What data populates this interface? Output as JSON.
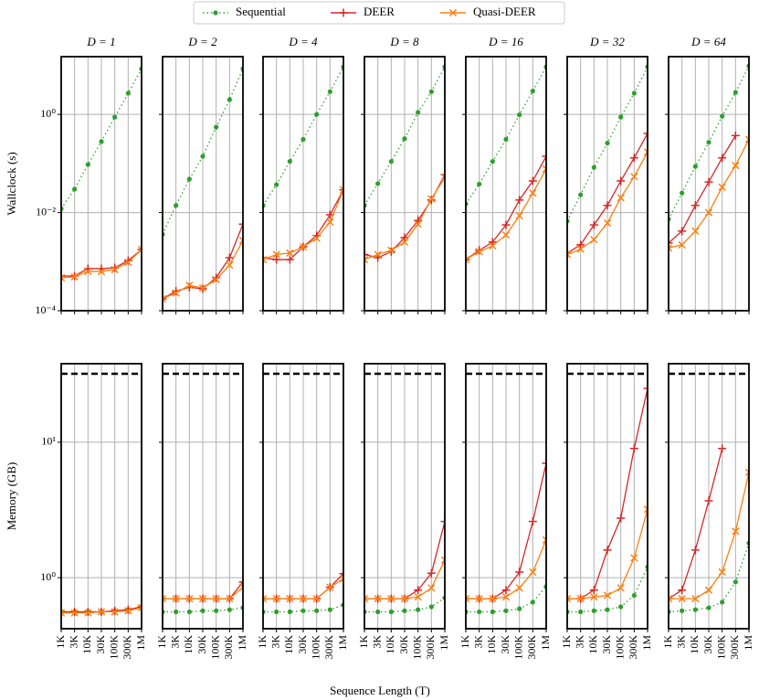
{
  "figure_xlabel": "Sequence Length (T)",
  "chart_data": [
    {
      "type": "line",
      "title": "D = 1",
      "ylabel": "Wallclock (s)",
      "log": true,
      "grid": true,
      "legend": "upper center",
      "categories": [
        null,
        null,
        null,
        null,
        null,
        null,
        null
      ],
      "ylim": [
        0.0001,
        15
      ],
      "yticks": [
        {
          "value": 0.0001,
          "label": "10⁻⁴"
        },
        {
          "value": 0.01,
          "label": "10⁻²"
        },
        {
          "value": 1,
          "label": "10⁰"
        }
      ],
      "series": [
        {
          "name": "Sequential",
          "color": "#2ca02c",
          "values": [
            0.012,
            0.03,
            0.095,
            0.28,
            0.88,
            2.7,
            8.5
          ]
        },
        {
          "name": "DEER",
          "color": "#d62728",
          "values": [
            0.00051,
            0.00051,
            0.00072,
            0.00072,
            0.00075,
            0.00105,
            0.00177
          ]
        },
        {
          "name": "Quasi-DEER",
          "color": "#ff7f0e",
          "values": [
            0.00047,
            0.00049,
            0.00063,
            0.00063,
            0.00069,
            0.00097,
            0.00177
          ]
        }
      ]
    },
    {
      "type": "line",
      "title": "D = 2",
      "log": true,
      "grid": true,
      "categories": [
        null,
        null,
        null,
        null,
        null,
        null,
        null
      ],
      "ylim": [
        0.0001,
        15
      ],
      "yticks": [
        0.0001,
        0.01,
        1
      ],
      "series": [
        {
          "name": "Sequential",
          "color": "#2ca02c",
          "values": [
            0.0036,
            0.014,
            0.048,
            0.14,
            0.55,
            2.0,
            8.5
          ]
        },
        {
          "name": "DEER",
          "color": "#d62728",
          "values": [
            0.000175,
            0.00025,
            0.0003,
            0.00028,
            0.00047,
            0.0012,
            0.0058
          ]
        },
        {
          "name": "Quasi-DEER",
          "color": "#ff7f0e",
          "values": [
            0.000175,
            0.00023,
            0.00033,
            0.00029,
            0.00043,
            0.00085,
            0.0027
          ]
        }
      ]
    },
    {
      "type": "line",
      "title": "D = 4",
      "log": true,
      "grid": true,
      "categories": [
        null,
        null,
        null,
        null,
        null,
        null,
        null
      ],
      "ylim": [
        0.0001,
        15
      ],
      "yticks": [
        0.0001,
        0.01,
        1
      ],
      "series": [
        {
          "name": "Sequential",
          "color": "#2ca02c",
          "values": [
            0.014,
            0.037,
            0.11,
            0.31,
            1.0,
            2.9,
            9.3
          ]
        },
        {
          "name": "DEER",
          "color": "#d62728",
          "values": [
            0.0012,
            0.0011,
            0.0011,
            0.002,
            0.0034,
            0.009,
            0.029
          ]
        },
        {
          "name": "Quasi-DEER",
          "color": "#ff7f0e",
          "values": [
            0.0011,
            0.0014,
            0.0015,
            0.002,
            0.003,
            0.0064,
            0.029
          ]
        }
      ]
    },
    {
      "type": "line",
      "title": "D = 8",
      "log": true,
      "grid": true,
      "categories": [
        null,
        null,
        null,
        null,
        null,
        null,
        null
      ],
      "ylim": [
        0.0001,
        15
      ],
      "yticks": [
        0.0001,
        0.01,
        1
      ],
      "series": [
        {
          "name": "Sequential",
          "color": "#2ca02c",
          "values": [
            0.014,
            0.039,
            0.11,
            0.32,
            1.1,
            2.9,
            9.3
          ]
        },
        {
          "name": "DEER",
          "color": "#d62728",
          "values": [
            0.0014,
            0.0012,
            0.0016,
            0.0031,
            0.0069,
            0.018,
            0.059
          ]
        },
        {
          "name": "Quasi-DEER",
          "color": "#ff7f0e",
          "values": [
            0.0011,
            0.0014,
            0.0017,
            0.0025,
            0.0058,
            0.019,
            0.052
          ]
        }
      ]
    },
    {
      "type": "line",
      "title": "D = 16",
      "log": true,
      "grid": true,
      "categories": [
        null,
        null,
        null,
        null,
        null,
        null,
        null
      ],
      "ylim": [
        0.0001,
        15
      ],
      "yticks": [
        0.0001,
        0.01,
        1
      ],
      "series": [
        {
          "name": "Sequential",
          "color": "#2ca02c",
          "values": [
            0.015,
            0.038,
            0.11,
            0.31,
            0.98,
            3.0,
            9.3
          ]
        },
        {
          "name": "DEER",
          "color": "#d62728",
          "values": [
            0.0011,
            0.0017,
            0.0025,
            0.0056,
            0.018,
            0.044,
            0.14
          ]
        },
        {
          "name": "Quasi-DEER",
          "color": "#ff7f0e",
          "values": [
            0.0011,
            0.0016,
            0.0021,
            0.0035,
            0.0086,
            0.025,
            0.077
          ]
        }
      ]
    },
    {
      "type": "line",
      "title": "D = 32",
      "log": true,
      "grid": true,
      "categories": [
        null,
        null,
        null,
        null,
        null,
        null,
        null
      ],
      "ylim": [
        0.0001,
        15
      ],
      "yticks": [
        0.0001,
        0.01,
        1
      ],
      "series": [
        {
          "name": "Sequential",
          "color": "#2ca02c",
          "values": [
            0.0067,
            0.023,
            0.083,
            0.26,
            0.88,
            2.7,
            9.3
          ]
        },
        {
          "name": "DEER",
          "color": "#d62728",
          "values": [
            0.0015,
            0.0022,
            0.0056,
            0.014,
            0.044,
            0.13,
            0.41
          ]
        },
        {
          "name": "Quasi-DEER",
          "color": "#ff7f0e",
          "values": [
            0.0014,
            0.0018,
            0.0028,
            0.0061,
            0.02,
            0.054,
            0.17
          ]
        }
      ]
    },
    {
      "type": "line",
      "title": "D = 64",
      "log": true,
      "grid": true,
      "categories": [
        null,
        null,
        null,
        null,
        null,
        null,
        null
      ],
      "ylim": [
        0.0001,
        15
      ],
      "yticks": [
        0.0001,
        0.01,
        1
      ],
      "series": [
        {
          "name": "Sequential",
          "color": "#2ca02c",
          "values": [
            0.0073,
            0.025,
            0.087,
            0.27,
            0.92,
            2.8,
            9.7
          ]
        },
        {
          "name": "DEER",
          "color": "#d62728",
          "values": [
            0.0024,
            0.0042,
            0.014,
            0.042,
            0.13,
            0.37,
            null
          ]
        },
        {
          "name": "Quasi-DEER",
          "color": "#ff7f0e",
          "values": [
            0.0019,
            0.0022,
            0.0042,
            0.01,
            0.033,
            0.091,
            0.31
          ]
        }
      ]
    },
    {
      "type": "line",
      "ylabel": "Memory (GB)",
      "log": true,
      "grid": true,
      "hline": 32,
      "categories": [
        "1K",
        "3K",
        "10K",
        "30K",
        "100K",
        "300K",
        "1M"
      ],
      "ylim": [
        0.42,
        38
      ],
      "yticks": [
        {
          "value": 1,
          "label": "10⁰"
        },
        {
          "value": 10,
          "label": "10¹"
        }
      ],
      "series": [
        {
          "name": "Sequential",
          "color": "#2ca02c",
          "values": [
            0.56,
            0.56,
            0.56,
            0.56,
            0.57,
            0.58,
            0.61
          ]
        },
        {
          "name": "DEER",
          "color": "#d62728",
          "values": [
            0.56,
            0.56,
            0.56,
            0.56,
            0.57,
            0.58,
            0.61
          ]
        },
        {
          "name": "Quasi-DEER",
          "color": "#ff7f0e",
          "values": [
            0.55,
            0.55,
            0.55,
            0.56,
            0.56,
            0.57,
            0.6
          ]
        }
      ]
    },
    {
      "type": "line",
      "log": true,
      "grid": true,
      "hline": 32,
      "categories": [
        "1K",
        "3K",
        "10K",
        "30K",
        "100K",
        "300K",
        "1M"
      ],
      "ylim": [
        0.42,
        38
      ],
      "yticks": [
        1,
        10
      ],
      "series": [
        {
          "name": "Sequential",
          "color": "#2ca02c",
          "values": [
            0.56,
            0.56,
            0.56,
            0.57,
            0.57,
            0.58,
            0.6
          ]
        },
        {
          "name": "DEER",
          "color": "#d62728",
          "values": [
            0.7,
            0.7,
            0.7,
            0.7,
            0.7,
            0.7,
            0.93
          ]
        },
        {
          "name": "Quasi-DEER",
          "color": "#ff7f0e",
          "values": [
            0.7,
            0.7,
            0.7,
            0.7,
            0.7,
            0.7,
            0.85
          ]
        }
      ]
    },
    {
      "type": "line",
      "log": true,
      "grid": true,
      "hline": 32,
      "categories": [
        "1K",
        "3K",
        "10K",
        "30K",
        "100K",
        "300K",
        "1M"
      ],
      "ylim": [
        0.42,
        38
      ],
      "yticks": [
        1,
        10
      ],
      "series": [
        {
          "name": "Sequential",
          "color": "#2ca02c",
          "values": [
            0.56,
            0.56,
            0.56,
            0.57,
            0.57,
            0.58,
            0.63
          ]
        },
        {
          "name": "DEER",
          "color": "#d62728",
          "values": [
            0.7,
            0.7,
            0.7,
            0.7,
            0.7,
            0.85,
            1.07
          ]
        },
        {
          "name": "Quasi-DEER",
          "color": "#ff7f0e",
          "values": [
            0.7,
            0.7,
            0.7,
            0.7,
            0.7,
            0.85,
            0.98
          ]
        }
      ]
    },
    {
      "type": "line",
      "log": true,
      "grid": true,
      "hline": 32,
      "categories": [
        "1K",
        "3K",
        "10K",
        "30K",
        "100K",
        "300K",
        "1M"
      ],
      "ylim": [
        0.42,
        38
      ],
      "yticks": [
        1,
        10
      ],
      "series": [
        {
          "name": "Sequential",
          "color": "#2ca02c",
          "values": [
            0.56,
            0.56,
            0.56,
            0.57,
            0.58,
            0.61,
            0.71
          ]
        },
        {
          "name": "DEER",
          "color": "#d62728",
          "values": [
            0.7,
            0.7,
            0.7,
            0.7,
            0.81,
            1.08,
            2.6
          ]
        },
        {
          "name": "Quasi-DEER",
          "color": "#ff7f0e",
          "values": [
            0.7,
            0.7,
            0.7,
            0.7,
            0.72,
            0.84,
            1.35
          ]
        }
      ]
    },
    {
      "type": "line",
      "log": true,
      "grid": true,
      "hline": 32,
      "categories": [
        "1K",
        "3K",
        "10K",
        "30K",
        "100K",
        "300K",
        "1M"
      ],
      "ylim": [
        0.42,
        38
      ],
      "yticks": [
        1,
        10
      ],
      "series": [
        {
          "name": "Sequential",
          "color": "#2ca02c",
          "values": [
            0.56,
            0.56,
            0.56,
            0.57,
            0.59,
            0.66,
            0.86
          ]
        },
        {
          "name": "DEER",
          "color": "#d62728",
          "values": [
            0.7,
            0.7,
            0.7,
            0.81,
            1.1,
            2.6,
            7.0
          ]
        },
        {
          "name": "Quasi-DEER",
          "color": "#ff7f0e",
          "values": [
            0.7,
            0.7,
            0.7,
            0.72,
            0.84,
            1.1,
            1.9
          ]
        }
      ]
    },
    {
      "type": "line",
      "log": true,
      "grid": true,
      "hline": 32,
      "categories": [
        "1K",
        "3K",
        "10K",
        "30K",
        "100K",
        "300K",
        "1M"
      ],
      "ylim": [
        0.42,
        38
      ],
      "yticks": [
        1,
        10
      ],
      "series": [
        {
          "name": "Sequential",
          "color": "#2ca02c",
          "values": [
            0.56,
            0.56,
            0.57,
            0.58,
            0.61,
            0.74,
            1.2
          ]
        },
        {
          "name": "DEER",
          "color": "#d62728",
          "values": [
            0.7,
            0.7,
            0.81,
            1.6,
            2.75,
            9.0,
            25
          ]
        },
        {
          "name": "Quasi-DEER",
          "color": "#ff7f0e",
          "values": [
            0.7,
            0.7,
            0.72,
            0.74,
            0.84,
            1.4,
            3.2
          ]
        }
      ]
    },
    {
      "type": "line",
      "log": true,
      "grid": true,
      "hline": 32,
      "categories": [
        "1K",
        "3K",
        "10K",
        "30K",
        "100K",
        "300K",
        "1M"
      ],
      "ylim": [
        0.42,
        38
      ],
      "yticks": [
        1,
        10
      ],
      "series": [
        {
          "name": "Sequential",
          "color": "#2ca02c",
          "values": [
            0.56,
            0.57,
            0.58,
            0.6,
            0.66,
            0.93,
            1.8
          ]
        },
        {
          "name": "DEER",
          "color": "#d62728",
          "values": [
            0.7,
            0.81,
            1.6,
            3.7,
            9.0,
            null,
            null
          ]
        },
        {
          "name": "Quasi-DEER",
          "color": "#ff7f0e",
          "values": [
            0.7,
            0.7,
            0.7,
            0.81,
            1.1,
            2.2,
            6.0
          ]
        }
      ]
    }
  ]
}
